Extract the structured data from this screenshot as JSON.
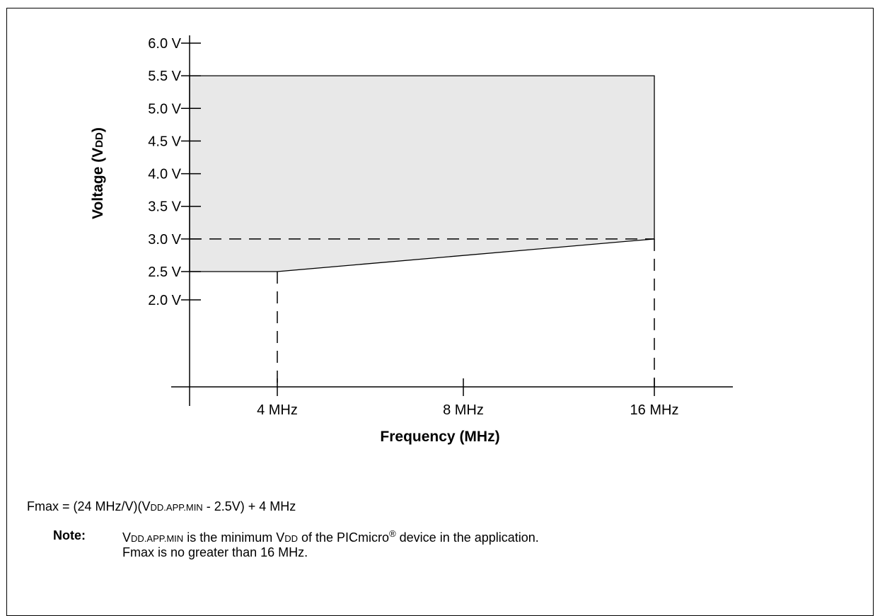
{
  "chart_data": {
    "type": "area",
    "xlabel": "Frequency (MHz)",
    "ylabel_main": "Voltage (V",
    "ylabel_sub": "DD",
    "ylabel_close": ")",
    "x_ticks": [
      {
        "value": 4,
        "label": "4 MHz"
      },
      {
        "value": 8,
        "label": "8 MHz"
      },
      {
        "value": 16,
        "label": "16 MHz"
      }
    ],
    "y_ticks": [
      {
        "value": 2.0,
        "label": "2.0 V"
      },
      {
        "value": 2.5,
        "label": "2.5 V"
      },
      {
        "value": 3.0,
        "label": "3.0 V"
      },
      {
        "value": 3.5,
        "label": "3.5 V"
      },
      {
        "value": 4.0,
        "label": "4.0 V"
      },
      {
        "value": 4.5,
        "label": "4.5 V"
      },
      {
        "value": 5.0,
        "label": "5.0 V"
      },
      {
        "value": 5.5,
        "label": "5.5 V"
      },
      {
        "value": 6.0,
        "label": "6.0 V"
      }
    ],
    "region": {
      "polygon": [
        [
          0,
          2.5
        ],
        [
          4,
          2.5
        ],
        [
          16,
          3.0
        ],
        [
          16,
          5.5
        ],
        [
          0,
          5.5
        ]
      ],
      "fill": "#e8e8e8"
    },
    "dashed_guides": [
      {
        "from": [
          0,
          3.0
        ],
        "to": [
          16,
          3.0
        ]
      },
      {
        "from": [
          4,
          2.5
        ],
        "to": [
          4,
          1.0
        ]
      },
      {
        "from": [
          16,
          3.0
        ],
        "to": [
          16,
          1.0
        ]
      }
    ],
    "xlim": [
      0,
      16
    ],
    "ylim": [
      1.0,
      6.0
    ]
  },
  "formula": {
    "prefix": "Fmax = (24 MHz/V)(V",
    "sub": "DD.APP.MIN",
    "suffix": " - 2.5V) + 4 MHz"
  },
  "note": {
    "label": "Note:",
    "line1_v": "V",
    "line1_sub1": "DD.APP.MIN",
    "line1_mid": " is the minimum V",
    "line1_sub2": "DD",
    "line1_rest": " of the PICmicro",
    "line1_reg": "®",
    "line1_end": " device in the application.",
    "line2": "Fmax is no greater than 16 MHz."
  },
  "colors": {
    "fill": "#e8e8e8",
    "line": "#000000"
  }
}
